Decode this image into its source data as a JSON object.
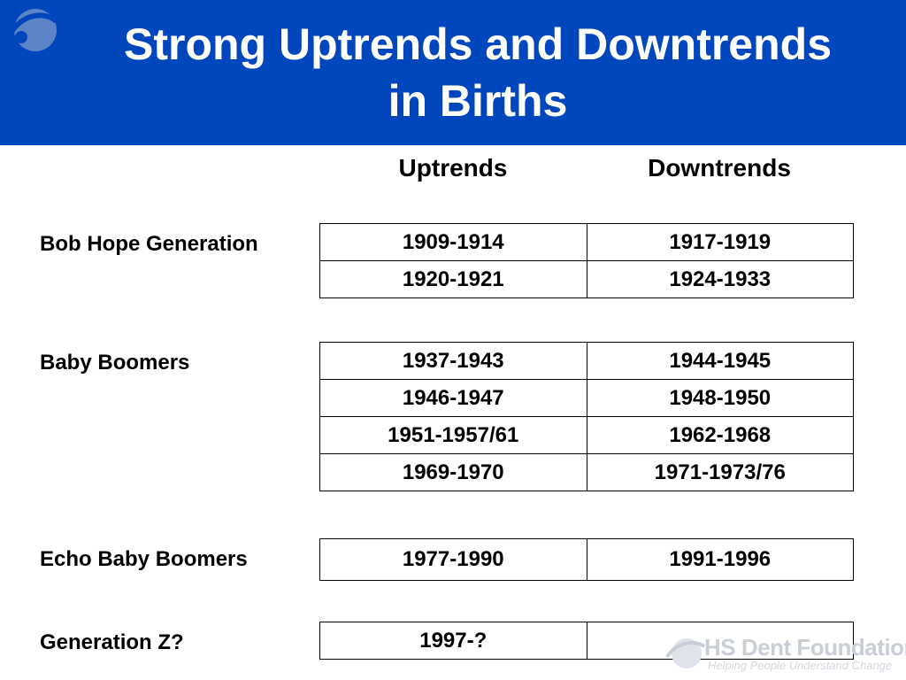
{
  "slide": {
    "title_line1": "Strong Uptrends and Downtrends",
    "title_line2": "in Births"
  },
  "columns": {
    "uptrends": "Uptrends",
    "downtrends": "Downtrends"
  },
  "groups": [
    {
      "label": "Bob Hope Generation",
      "rows": [
        {
          "up": "1909-1914",
          "down": "1917-1919"
        },
        {
          "up": "1920-1921",
          "down": "1924-1933"
        }
      ]
    },
    {
      "label": "Baby Boomers",
      "rows": [
        {
          "up": "1937-1943",
          "down": "1944-1945"
        },
        {
          "up": "1946-1947",
          "down": "1948-1950"
        },
        {
          "up": "1951-1957/61",
          "down": "1962-1968"
        },
        {
          "up": "1969-1970",
          "down": "1971-1973/76"
        }
      ]
    },
    {
      "label": "Echo Baby Boomers",
      "rows": [
        {
          "up": "1977-1990",
          "down": "1991-1996"
        }
      ]
    },
    {
      "label": "Generation Z?",
      "rows": [
        {
          "up": "1997-?",
          "down": ""
        }
      ]
    }
  ],
  "footer": {
    "logo_name": "HS Dent Foundation",
    "logo_tagline": "Helping People Understand Change"
  },
  "colors": {
    "header_bg": "#0046bd",
    "title_text": "#ffffff",
    "logo_gray": "#c9ced7"
  },
  "icons": {
    "header_logo": "globe-swoosh-icon",
    "footer_logo": "globe-swoosh-icon"
  }
}
